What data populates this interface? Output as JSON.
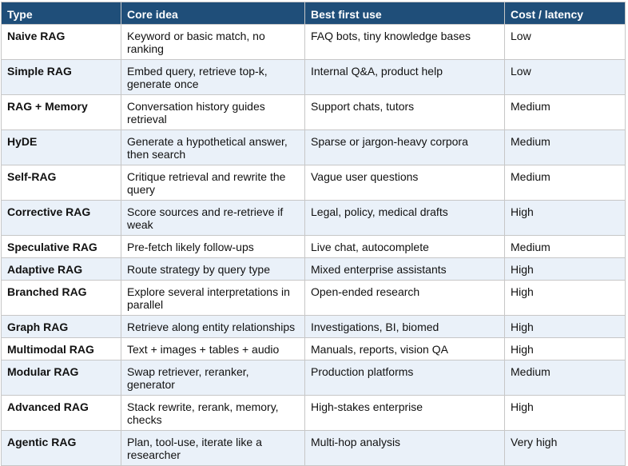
{
  "headers": {
    "type": "Type",
    "core_idea": "Core idea",
    "best_first_use": "Best first use",
    "cost_latency": "Cost / latency"
  },
  "rows": [
    {
      "type": "Naive RAG",
      "core_idea": "Keyword or basic match, no ranking",
      "best_first_use": "FAQ bots, tiny knowledge bases",
      "cost": "Low"
    },
    {
      "type": "Simple RAG",
      "core_idea": "Embed query, retrieve top-k, generate once",
      "best_first_use": "Internal Q&A, product help",
      "cost": "Low"
    },
    {
      "type": "RAG + Memory",
      "core_idea": "Conversation history guides retrieval",
      "best_first_use": "Support chats, tutors",
      "cost": "Medium"
    },
    {
      "type": "HyDE",
      "core_idea": "Generate a hypothetical answer, then search",
      "best_first_use": "Sparse or jargon-heavy corpora",
      "cost": "Medium"
    },
    {
      "type": "Self-RAG",
      "core_idea": "Critique retrieval and rewrite the query",
      "best_first_use": "Vague user questions",
      "cost": "Medium"
    },
    {
      "type": "Corrective RAG",
      "core_idea": "Score sources and re-retrieve if weak",
      "best_first_use": "Legal, policy, medical drafts",
      "cost": "High"
    },
    {
      "type": "Speculative RAG",
      "core_idea": "Pre-fetch likely follow-ups",
      "best_first_use": "Live chat, autocomplete",
      "cost": "Medium"
    },
    {
      "type": "Adaptive RAG",
      "core_idea": "Route strategy by query type",
      "best_first_use": "Mixed enterprise assistants",
      "cost": "High"
    },
    {
      "type": "Branched RAG",
      "core_idea": "Explore several interpretations in parallel",
      "best_first_use": "Open-ended research",
      "cost": "High"
    },
    {
      "type": "Graph RAG",
      "core_idea": "Retrieve along entity relationships",
      "best_first_use": "Investigations, BI, biomed",
      "cost": "High"
    },
    {
      "type": "Multimodal RAG",
      "core_idea": "Text + images + tables + audio",
      "best_first_use": "Manuals, reports, vision QA",
      "cost": "High"
    },
    {
      "type": "Modular RAG",
      "core_idea": "Swap retriever, reranker, generator",
      "best_first_use": "Production platforms",
      "cost": "Medium"
    },
    {
      "type": "Advanced RAG",
      "core_idea": "Stack rewrite, rerank, memory, checks",
      "best_first_use": "High-stakes enterprise",
      "cost": "High"
    },
    {
      "type": "Agentic RAG",
      "core_idea": "Plan, tool-use, iterate like a researcher",
      "best_first_use": "Multi-hop analysis",
      "cost": "Very high"
    }
  ]
}
